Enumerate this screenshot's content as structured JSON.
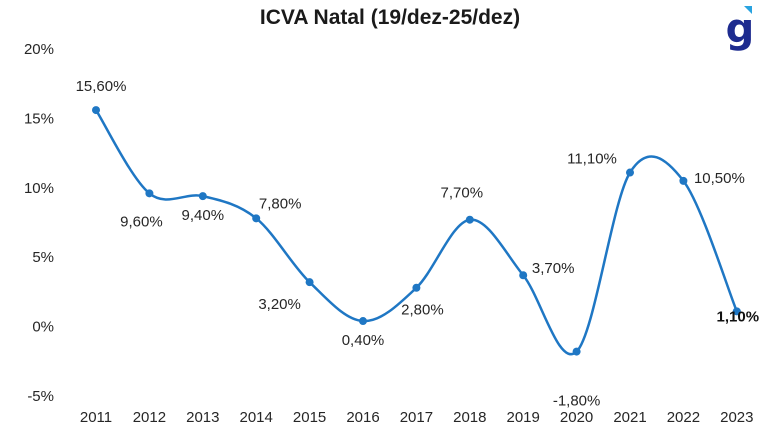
{
  "chart_data": {
    "type": "line",
    "title": "ICVA Natal (19/dez-25/dez)",
    "xlabel": "",
    "ylabel": "",
    "categories": [
      "2011",
      "2012",
      "2013",
      "2014",
      "2015",
      "2016",
      "2017",
      "2018",
      "2019",
      "2020",
      "2021",
      "2022",
      "2023"
    ],
    "values": [
      15.6,
      9.6,
      9.4,
      7.8,
      3.2,
      0.4,
      2.8,
      7.7,
      3.7,
      -1.8,
      11.1,
      10.5,
      1.1
    ],
    "data_labels": [
      "15,60%",
      "9,60%",
      "9,40%",
      "7,80%",
      "3,20%",
      "0,40%",
      "2,80%",
      "7,70%",
      "3,70%",
      "-1,80%",
      "11,10%",
      "10,50%",
      "1,10%"
    ],
    "highlight_index": 12,
    "ylim": [
      -5,
      20
    ],
    "yticks": [
      -5,
      0,
      5,
      10,
      15,
      20
    ],
    "ytick_labels": [
      "-5%",
      "0%",
      "5%",
      "10%",
      "15%",
      "20%"
    ],
    "grid": false,
    "legend": "none",
    "line_color": "#1f77c4"
  },
  "logo": {
    "name": "g-logo",
    "letter": "g",
    "main_color": "#1d2b8f",
    "accent_color": "#29a3e0"
  }
}
